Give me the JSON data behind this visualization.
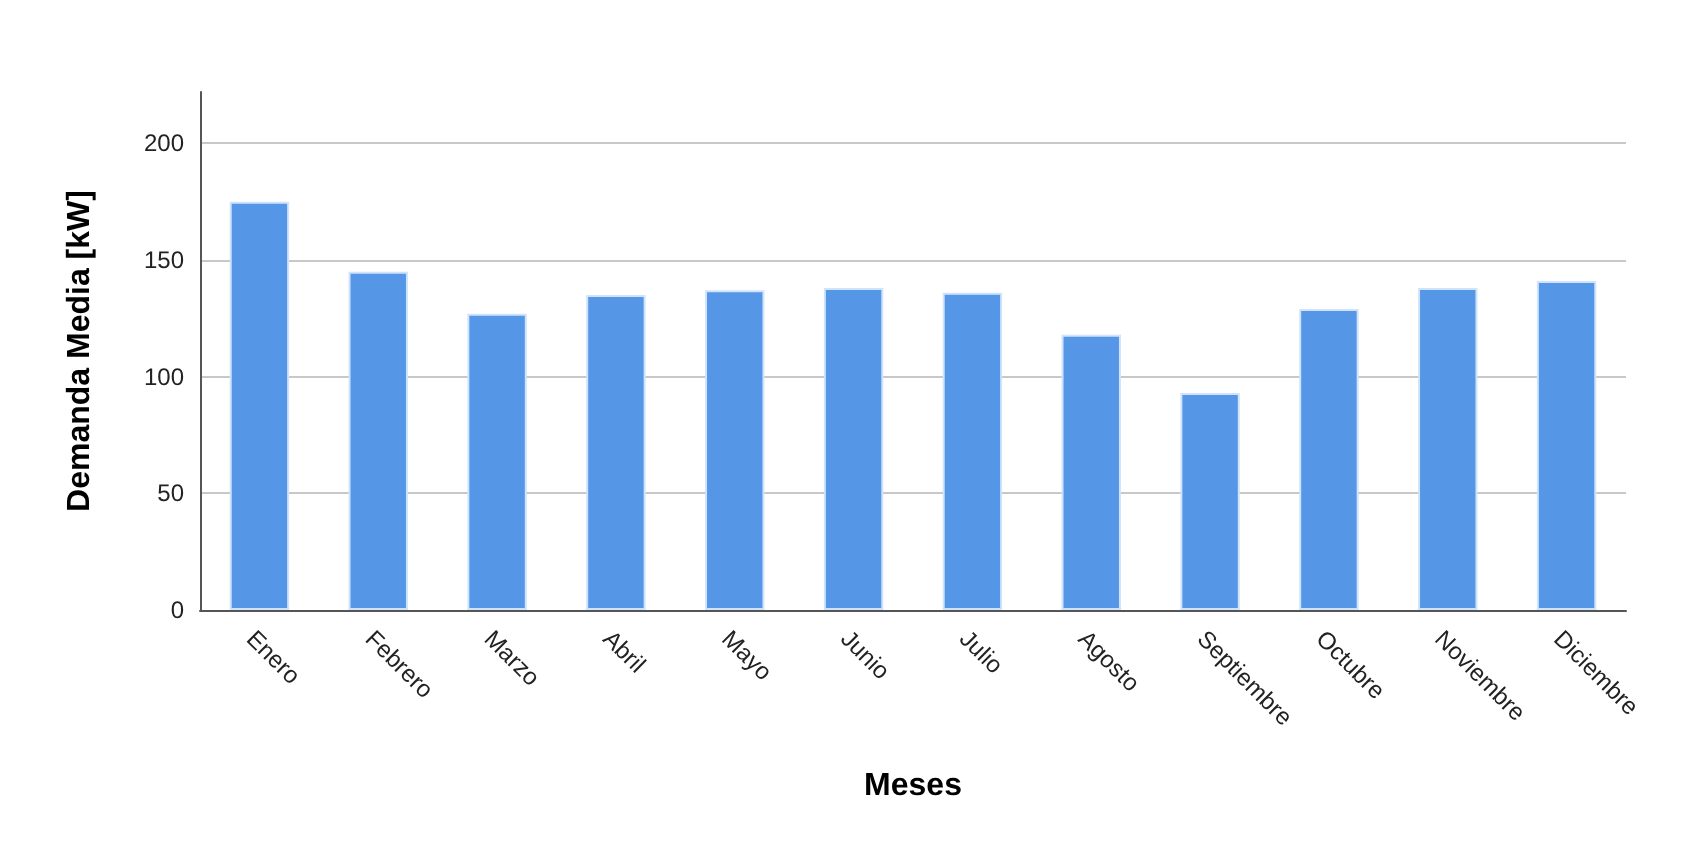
{
  "chart_data": {
    "type": "bar",
    "xlabel": "Meses",
    "ylabel": "Demanda Media [kW]",
    "categories": [
      "Enero",
      "Febrero",
      "Marzo",
      "Abril",
      "Mayo",
      "Junio",
      "Julio",
      "Agosto",
      "Septiembre",
      "Octubre",
      "Noviembre",
      "Diciembre"
    ],
    "values": [
      175,
      145,
      127,
      135,
      137,
      138,
      136,
      118,
      93,
      129,
      138,
      141
    ],
    "color": "#5596e6",
    "ylim": [
      0,
      222
    ],
    "yticks": [
      0,
      50,
      100,
      150,
      200
    ],
    "grid": "y"
  }
}
